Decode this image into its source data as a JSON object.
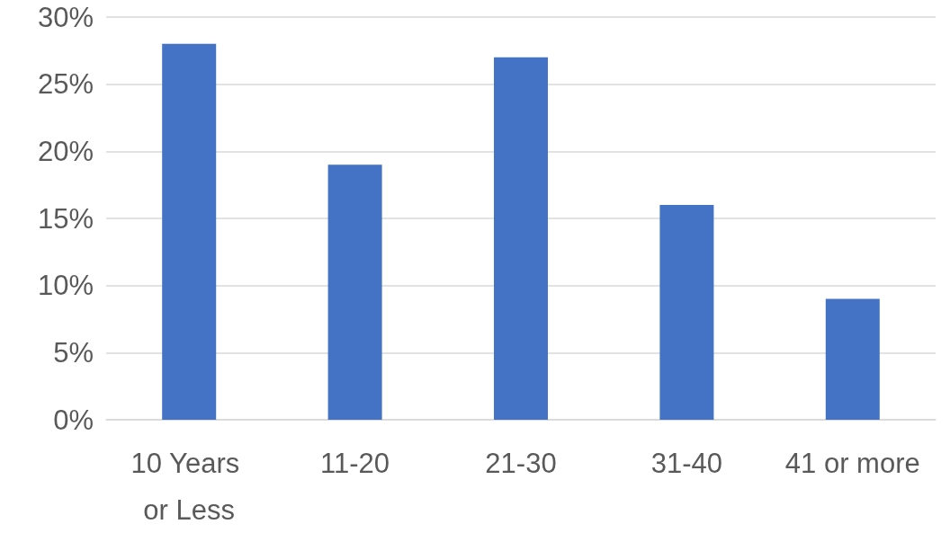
{
  "chart_data": {
    "type": "bar",
    "categories": [
      "10 Years or Less",
      "11-20",
      "21-30",
      "31-40",
      "41 or more"
    ],
    "values": [
      28,
      19,
      27,
      16,
      9
    ],
    "color": "#4472c4",
    "ylim": [
      0,
      30
    ],
    "yticks": [
      {
        "value": 0,
        "label": "0%"
      },
      {
        "value": 5,
        "label": "5%"
      },
      {
        "value": 10,
        "label": "10%"
      },
      {
        "value": 15,
        "label": "15%"
      },
      {
        "value": 20,
        "label": "20%"
      },
      {
        "value": 25,
        "label": "25%"
      },
      {
        "value": 30,
        "label": "30%"
      }
    ],
    "grid": "y"
  }
}
